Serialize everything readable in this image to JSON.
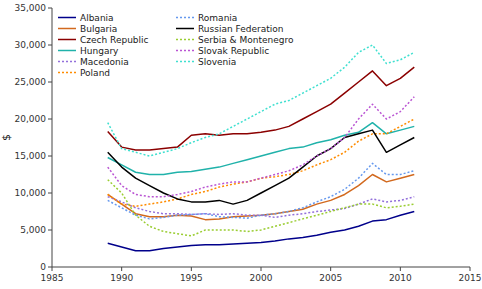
{
  "chart_data": {
    "type": "line",
    "ylabel": "$",
    "x": [
      1989,
      1990,
      1991,
      1992,
      1993,
      1994,
      1995,
      1996,
      1997,
      1998,
      1999,
      2000,
      2001,
      2002,
      2003,
      2004,
      2005,
      2006,
      2007,
      2008,
      2009,
      2010,
      2011
    ],
    "xlim": [
      1985,
      2015
    ],
    "xticks": [
      1985,
      1990,
      1995,
      2000,
      2005,
      2010,
      2015
    ],
    "ylim": [
      0,
      35000
    ],
    "yticks": [
      0,
      {
        "value": 5000,
        "label": "5,000"
      },
      {
        "value": 10000,
        "label": "10,000"
      },
      {
        "value": 15000,
        "label": "15,000"
      },
      {
        "value": 20000,
        "label": "20,000"
      },
      {
        "value": 25000,
        "label": "25,000"
      },
      {
        "value": 30000,
        "label": "30,000"
      },
      {
        "value": 35000,
        "label": "35,000"
      }
    ],
    "grid": false,
    "legend": "upper left",
    "series": [
      {
        "name": "Albania",
        "color": "#00008B",
        "line_style": "solid",
        "values": [
          3200,
          2700,
          2200,
          2200,
          2500,
          2700,
          2900,
          3000,
          3000,
          3100,
          3200,
          3300,
          3500,
          3800,
          4000,
          4300,
          4700,
          5000,
          5500,
          6200,
          6400,
          7000,
          7500
        ]
      },
      {
        "name": "Bulgaria",
        "color": "#D2691E",
        "line_style": "solid",
        "values": [
          9800,
          8500,
          7200,
          6800,
          6800,
          7000,
          6900,
          6400,
          6500,
          6800,
          6900,
          7000,
          7200,
          7500,
          7800,
          8500,
          9000,
          9800,
          11000,
          12500,
          11500,
          12000,
          12500
        ]
      },
      {
        "name": "Czech Republic",
        "color": "#8B0000",
        "line_style": "solid",
        "values": [
          18300,
          16200,
          15800,
          15800,
          16000,
          16200,
          17800,
          18000,
          17800,
          18000,
          18000,
          18200,
          18500,
          19000,
          20000,
          21000,
          22000,
          23500,
          25000,
          26500,
          24500,
          25500,
          27000
        ]
      },
      {
        "name": "Hungary",
        "color": "#20B2AA",
        "line_style": "solid",
        "values": [
          14800,
          13800,
          12800,
          12500,
          12500,
          12800,
          12900,
          13200,
          13500,
          14000,
          14500,
          15000,
          15500,
          16000,
          16200,
          16800,
          17200,
          17800,
          18200,
          19500,
          18000,
          18500,
          19000
        ]
      },
      {
        "name": "Macedonia",
        "color": "#9370DB",
        "line_style": "dotted",
        "values": [
          9500,
          8800,
          8000,
          7500,
          7200,
          7200,
          7100,
          7200,
          7100,
          7200,
          7000,
          7000,
          6700,
          7000,
          7200,
          7500,
          7700,
          7900,
          8500,
          9200,
          8800,
          9000,
          9500
        ]
      },
      {
        "name": "Poland",
        "color": "#FF8C00",
        "line_style": "dotted",
        "values": [
          9800,
          8500,
          8200,
          8500,
          8800,
          9200,
          9800,
          10200,
          10800,
          11200,
          11500,
          12000,
          12200,
          12500,
          13000,
          13800,
          14500,
          15500,
          17000,
          18000,
          18000,
          19000,
          20000
        ]
      },
      {
        "name": "Romania",
        "color": "#6699EE",
        "line_style": "dotted",
        "values": [
          9000,
          8000,
          7000,
          6500,
          6700,
          7000,
          7100,
          7200,
          6800,
          6700,
          6600,
          7000,
          7200,
          7500,
          8000,
          8800,
          9500,
          10500,
          12000,
          14000,
          12500,
          12500,
          13000
        ]
      },
      {
        "name": "Russian Federation",
        "color": "#000000",
        "line_style": "solid",
        "values": [
          15500,
          13500,
          12000,
          11000,
          10000,
          9200,
          8800,
          8800,
          9000,
          8500,
          9000,
          10000,
          11000,
          12000,
          13500,
          15000,
          16000,
          17500,
          18000,
          18500,
          15500,
          16500,
          17500
        ]
      },
      {
        "name": "Serbia & Montenegro",
        "color": "#9ACD32",
        "line_style": "dotted",
        "values": [
          11800,
          10000,
          7000,
          5500,
          4800,
          4500,
          4200,
          5000,
          5000,
          5000,
          4800,
          5000,
          5500,
          6000,
          6500,
          7000,
          7500,
          8000,
          8500,
          8500,
          8000,
          8200,
          8500
        ]
      },
      {
        "name": "Slovak Republic",
        "color": "#BA55D3",
        "line_style": "dotted",
        "values": [
          13500,
          11000,
          9800,
          9500,
          9500,
          9800,
          10200,
          10800,
          11200,
          11500,
          11500,
          12000,
          12500,
          13000,
          13800,
          15000,
          16000,
          17500,
          20000,
          22000,
          20000,
          21000,
          23000
        ]
      },
      {
        "name": "Slovenia",
        "color": "#40E0D0",
        "line_style": "dotted",
        "values": [
          19500,
          16000,
          15500,
          15000,
          15500,
          16000,
          16800,
          17500,
          18000,
          19000,
          20000,
          21000,
          22000,
          22500,
          23500,
          24500,
          25500,
          27000,
          29000,
          30000,
          27500,
          28000,
          29000
        ]
      }
    ]
  }
}
